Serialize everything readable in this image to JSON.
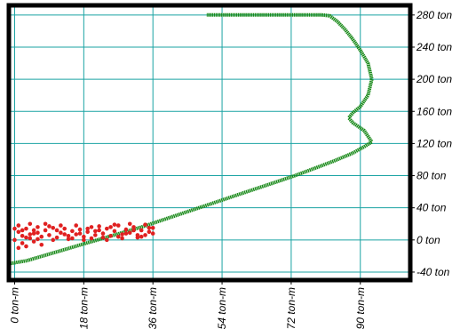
{
  "chart_data": {
    "type": "scatter",
    "title": "",
    "xlabel": "",
    "ylabel": "",
    "xlim": [
      -1.5,
      103
    ],
    "ylim": [
      -50,
      292
    ],
    "x_ticks": [
      0,
      18,
      36,
      54,
      72,
      90
    ],
    "x_tick_labels": [
      "0 ton-m",
      "18 ton-m",
      "36 ton-m",
      "54 ton-m",
      "72 ton-m",
      "90 ton-m"
    ],
    "y_ticks": [
      -40,
      0,
      40,
      80,
      120,
      160,
      200,
      240,
      280
    ],
    "y_tick_labels": [
      "-40 ton",
      "0 ton",
      "40 ton",
      "80 ton",
      "120 ton",
      "160 ton",
      "200 ton",
      "240 ton",
      "280 ton"
    ],
    "grid": true,
    "legend": "none",
    "series": [
      {
        "mark": "line",
        "color": "#1a8a1a",
        "points": [
          [
            -2,
            -30
          ],
          [
            3,
            -26
          ],
          [
            8,
            -19
          ],
          [
            13,
            -12
          ],
          [
            18,
            -5
          ],
          [
            23,
            2
          ],
          [
            28,
            9
          ],
          [
            33,
            16
          ],
          [
            38,
            24
          ],
          [
            43,
            32
          ],
          [
            48,
            40
          ],
          [
            53,
            48
          ],
          [
            58,
            56
          ],
          [
            63,
            64
          ],
          [
            68,
            72
          ],
          [
            73,
            80
          ],
          [
            78,
            89
          ],
          [
            83,
            98
          ],
          [
            88,
            108
          ],
          [
            91,
            116
          ],
          [
            93,
            122
          ],
          [
            91,
            136
          ],
          [
            88,
            146
          ],
          [
            87,
            152
          ],
          [
            88,
            158
          ],
          [
            90,
            166
          ],
          [
            92,
            180
          ],
          [
            93,
            200
          ],
          [
            92,
            220
          ],
          [
            90,
            236
          ],
          [
            88,
            250
          ],
          [
            86,
            262
          ],
          [
            84,
            272
          ],
          [
            82,
            279
          ],
          [
            80,
            280
          ],
          [
            50,
            280
          ]
        ]
      },
      {
        "mark": "points",
        "color": "#e02020",
        "points": [
          [
            0,
            0
          ],
          [
            1,
            10
          ],
          [
            2,
            5
          ],
          [
            3,
            14
          ],
          [
            4,
            2
          ],
          [
            5,
            8
          ],
          [
            6,
            16
          ],
          [
            7,
            4
          ],
          [
            8,
            12
          ],
          [
            9,
            6
          ],
          [
            10,
            15
          ],
          [
            11,
            3
          ],
          [
            12,
            9
          ],
          [
            13,
            14
          ],
          [
            14,
            5
          ],
          [
            15,
            11
          ],
          [
            16,
            7
          ],
          [
            17,
            13
          ],
          [
            18,
            4
          ],
          [
            19,
            10
          ],
          [
            20,
            16
          ],
          [
            21,
            6
          ],
          [
            22,
            12
          ],
          [
            23,
            8
          ],
          [
            24,
            14
          ],
          [
            25,
            5
          ],
          [
            26,
            11
          ],
          [
            27,
            18
          ],
          [
            28,
            7
          ],
          [
            29,
            13
          ],
          [
            30,
            9
          ],
          [
            31,
            16
          ],
          [
            32,
            6
          ],
          [
            33,
            12
          ],
          [
            34,
            19
          ],
          [
            35,
            10
          ],
          [
            36,
            15
          ],
          [
            0,
            14
          ],
          [
            1,
            18
          ],
          [
            2,
            -4
          ],
          [
            3,
            -8
          ],
          [
            4,
            20
          ],
          [
            5,
            -2
          ],
          [
            6,
            1
          ],
          [
            7,
            -6
          ],
          [
            8,
            20
          ],
          [
            10,
            0
          ],
          [
            12,
            18
          ],
          [
            14,
            1
          ],
          [
            16,
            18
          ],
          [
            18,
            0
          ],
          [
            20,
            2
          ],
          [
            22,
            17
          ],
          [
            24,
            0
          ],
          [
            26,
            19
          ],
          [
            28,
            2
          ],
          [
            30,
            20
          ],
          [
            32,
            3
          ],
          [
            34,
            6
          ],
          [
            36,
            8
          ],
          [
            1,
            -10
          ],
          [
            3,
            3
          ],
          [
            5,
            12
          ],
          [
            9,
            17
          ],
          [
            11,
            12
          ],
          [
            13,
            7
          ],
          [
            15,
            2
          ],
          [
            17,
            8
          ],
          [
            19,
            14
          ],
          [
            21,
            11
          ],
          [
            23,
            3
          ],
          [
            25,
            16
          ],
          [
            27,
            4
          ],
          [
            29,
            8
          ],
          [
            31,
            12
          ],
          [
            33,
            4
          ],
          [
            35,
            15
          ],
          [
            2,
            12
          ],
          [
            4,
            7
          ],
          [
            6,
            9
          ]
        ]
      }
    ]
  }
}
